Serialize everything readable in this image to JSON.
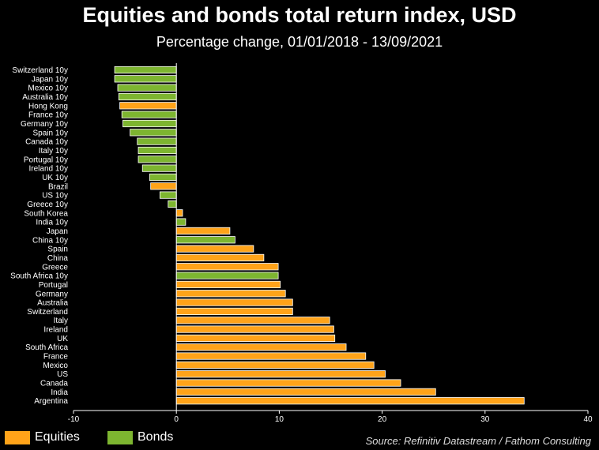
{
  "title": "Equities and bonds total return index, USD",
  "subtitle": "Percentage change, 01/01/2018 - 13/09/2021",
  "source": "Source: Refinitiv Datastream / Fathom Consulting",
  "colors": {
    "equities": "#FFA319",
    "bonds": "#7DB530",
    "background": "#000000",
    "text": "#FFFFFF"
  },
  "legend": [
    {
      "label": "Equities",
      "color": "#FFA319"
    },
    {
      "label": "Bonds",
      "color": "#7DB530"
    }
  ],
  "chart_data": {
    "type": "bar",
    "orientation": "horizontal",
    "title": "Equities and bonds total return index, USD",
    "subtitle": "Percentage change, 01/01/2018 - 13/09/2021",
    "xlim": [
      -10,
      40
    ],
    "x_ticks": [
      -10,
      0,
      10,
      20,
      30,
      40
    ],
    "grid": false,
    "legend_position": "bottom-left",
    "categories": [
      "Switzerland 10y",
      "Japan 10y",
      "Mexico 10y",
      "Australia 10y",
      "Hong Kong",
      "France 10y",
      "Germany 10y",
      "Spain 10y",
      "Canada 10y",
      "Italy 10y",
      "Portugal 10y",
      "Ireland 10y",
      "UK 10y",
      "Brazil",
      "US 10y",
      "Greece 10y",
      "South Korea",
      "India 10y",
      "Japan",
      "China 10y",
      "Spain",
      "China",
      "Greece",
      "South Africa 10y",
      "Portugal",
      "Germany",
      "Australia",
      "Switzerland",
      "Italy",
      "Ireland",
      "UK",
      "South Africa",
      "France",
      "Mexico",
      "US",
      "Canada",
      "India",
      "Argentina"
    ],
    "values": [
      -6.0,
      -6.0,
      -5.7,
      -5.6,
      -5.5,
      -5.3,
      -5.2,
      -4.5,
      -3.8,
      -3.7,
      -3.7,
      -3.3,
      -2.6,
      -2.5,
      -1.6,
      -0.8,
      0.6,
      0.9,
      5.2,
      5.7,
      7.5,
      8.5,
      9.9,
      9.9,
      10.1,
      10.6,
      11.3,
      11.3,
      14.9,
      15.3,
      15.4,
      16.5,
      18.4,
      19.2,
      20.3,
      21.8,
      25.2,
      33.8
    ],
    "asset_class": [
      "Bonds",
      "Bonds",
      "Bonds",
      "Bonds",
      "Equities",
      "Bonds",
      "Bonds",
      "Bonds",
      "Bonds",
      "Bonds",
      "Bonds",
      "Bonds",
      "Bonds",
      "Equities",
      "Bonds",
      "Bonds",
      "Equities",
      "Bonds",
      "Equities",
      "Bonds",
      "Equities",
      "Equities",
      "Equities",
      "Bonds",
      "Equities",
      "Equities",
      "Equities",
      "Equities",
      "Equities",
      "Equities",
      "Equities",
      "Equities",
      "Equities",
      "Equities",
      "Equities",
      "Equities",
      "Equities",
      "Equities"
    ]
  }
}
